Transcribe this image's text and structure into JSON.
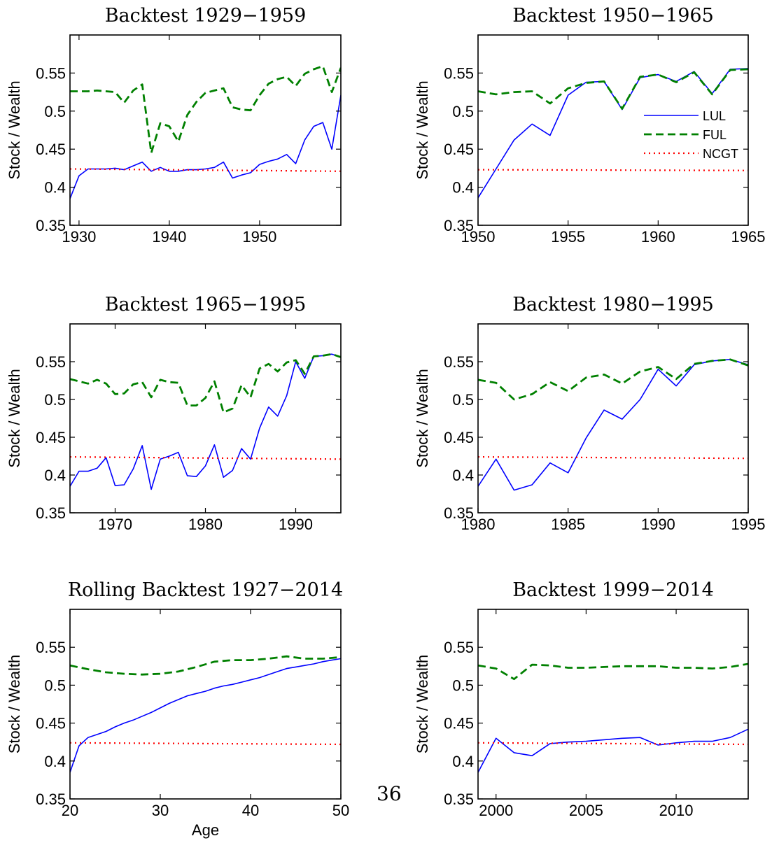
{
  "page_number": "36",
  "colors": {
    "LUL": "#0000ff",
    "FUL": "#008000",
    "NCGT": "#ff0000"
  },
  "chart_data": [
    {
      "type": "line",
      "title": "Backtest 1929−1959",
      "xlabel": "",
      "ylabel": "Stock / Wealth",
      "xlim": [
        1929,
        1959
      ],
      "ylim": [
        0.35,
        0.6
      ],
      "xticks": [
        1930,
        1940,
        1950
      ],
      "yticks": [
        0.35,
        0.4,
        0.45,
        0.5,
        0.55
      ],
      "legend": null,
      "series": [
        {
          "name": "LUL",
          "style": "solid",
          "x": [
            1929,
            1930,
            1931,
            1932,
            1933,
            1934,
            1935,
            1936,
            1937,
            1938,
            1939,
            1940,
            1941,
            1942,
            1943,
            1944,
            1945,
            1946,
            1947,
            1948,
            1949,
            1950,
            1951,
            1952,
            1953,
            1954,
            1955,
            1956,
            1957,
            1958,
            1959
          ],
          "y": [
            0.385,
            0.415,
            0.424,
            0.424,
            0.424,
            0.425,
            0.423,
            0.428,
            0.433,
            0.421,
            0.426,
            0.421,
            0.421,
            0.423,
            0.423,
            0.424,
            0.426,
            0.433,
            0.412,
            0.416,
            0.419,
            0.43,
            0.434,
            0.437,
            0.443,
            0.431,
            0.462,
            0.48,
            0.485,
            0.45,
            0.521
          ]
        },
        {
          "name": "FUL",
          "style": "dashed",
          "x": [
            1929,
            1930,
            1931,
            1932,
            1933,
            1934,
            1935,
            1936,
            1937,
            1938,
            1939,
            1940,
            1941,
            1942,
            1943,
            1944,
            1945,
            1946,
            1947,
            1948,
            1949,
            1950,
            1951,
            1952,
            1953,
            1954,
            1955,
            1956,
            1957,
            1958,
            1959
          ],
          "y": [
            0.526,
            0.526,
            0.526,
            0.527,
            0.526,
            0.525,
            0.511,
            0.527,
            0.535,
            0.445,
            0.484,
            0.48,
            0.46,
            0.495,
            0.512,
            0.524,
            0.527,
            0.53,
            0.505,
            0.502,
            0.501,
            0.521,
            0.536,
            0.542,
            0.545,
            0.533,
            0.549,
            0.555,
            0.559,
            0.525,
            0.557
          ]
        },
        {
          "name": "NCGT",
          "style": "dotted",
          "x": [
            1929,
            1959
          ],
          "y": [
            0.424,
            0.421
          ]
        }
      ]
    },
    {
      "type": "line",
      "title": "Backtest 1950−1965",
      "xlabel": "",
      "ylabel": "Stock / Wealth",
      "xlim": [
        1950,
        1965
      ],
      "ylim": [
        0.35,
        0.6
      ],
      "xticks": [
        1950,
        1955,
        1960,
        1965
      ],
      "yticks": [
        0.35,
        0.4,
        0.45,
        0.5,
        0.55
      ],
      "legend": {
        "position": "right",
        "entries": [
          "LUL",
          "FUL",
          "NCGT"
        ]
      },
      "series": [
        {
          "name": "LUL",
          "style": "solid",
          "x": [
            1950,
            1951,
            1952,
            1953,
            1954,
            1955,
            1956,
            1957,
            1958,
            1959,
            1960,
            1961,
            1962,
            1963,
            1964,
            1965
          ],
          "y": [
            0.386,
            0.424,
            0.462,
            0.483,
            0.468,
            0.521,
            0.538,
            0.539,
            0.502,
            0.544,
            0.548,
            0.539,
            0.552,
            0.523,
            0.555,
            0.556
          ]
        },
        {
          "name": "FUL",
          "style": "dashed",
          "x": [
            1950,
            1951,
            1952,
            1953,
            1954,
            1955,
            1956,
            1957,
            1958,
            1959,
            1960,
            1961,
            1962,
            1963,
            1964,
            1965
          ],
          "y": [
            0.526,
            0.522,
            0.525,
            0.526,
            0.51,
            0.53,
            0.537,
            0.539,
            0.503,
            0.545,
            0.548,
            0.538,
            0.551,
            0.522,
            0.554,
            0.555
          ]
        },
        {
          "name": "NCGT",
          "style": "dotted",
          "x": [
            1950,
            1965
          ],
          "y": [
            0.423,
            0.422
          ]
        }
      ]
    },
    {
      "type": "line",
      "title": "Backtest 1965−1995",
      "xlabel": "",
      "ylabel": "Stock / Wealth",
      "xlim": [
        1965,
        1995
      ],
      "ylim": [
        0.35,
        0.6
      ],
      "xticks": [
        1970,
        1980,
        1990
      ],
      "yticks": [
        0.35,
        0.4,
        0.45,
        0.5,
        0.55
      ],
      "legend": null,
      "series": [
        {
          "name": "LUL",
          "style": "solid",
          "x": [
            1965,
            1966,
            1967,
            1968,
            1969,
            1970,
            1971,
            1972,
            1973,
            1974,
            1975,
            1976,
            1977,
            1978,
            1979,
            1980,
            1981,
            1982,
            1983,
            1984,
            1985,
            1986,
            1987,
            1988,
            1989,
            1990,
            1991,
            1992,
            1993,
            1994,
            1995
          ],
          "y": [
            0.385,
            0.405,
            0.405,
            0.409,
            0.423,
            0.386,
            0.387,
            0.408,
            0.439,
            0.381,
            0.421,
            0.425,
            0.43,
            0.399,
            0.398,
            0.412,
            0.44,
            0.397,
            0.406,
            0.435,
            0.421,
            0.462,
            0.49,
            0.478,
            0.505,
            0.55,
            0.528,
            0.557,
            0.558,
            0.56,
            0.556
          ]
        },
        {
          "name": "FUL",
          "style": "dashed",
          "x": [
            1965,
            1966,
            1967,
            1968,
            1969,
            1970,
            1971,
            1972,
            1973,
            1974,
            1975,
            1976,
            1977,
            1978,
            1979,
            1980,
            1981,
            1982,
            1983,
            1984,
            1985,
            1986,
            1987,
            1988,
            1989,
            1990,
            1991,
            1992,
            1993,
            1994,
            1995
          ],
          "y": [
            0.527,
            0.524,
            0.521,
            0.526,
            0.521,
            0.507,
            0.508,
            0.52,
            0.523,
            0.503,
            0.526,
            0.523,
            0.522,
            0.492,
            0.492,
            0.502,
            0.524,
            0.483,
            0.488,
            0.519,
            0.503,
            0.541,
            0.547,
            0.537,
            0.549,
            0.552,
            0.534,
            0.557,
            0.558,
            0.56,
            0.556
          ]
        },
        {
          "name": "NCGT",
          "style": "dotted",
          "x": [
            1965,
            1995
          ],
          "y": [
            0.424,
            0.421
          ]
        }
      ]
    },
    {
      "type": "line",
      "title": "Backtest 1980−1995",
      "xlabel": "",
      "ylabel": "Stock / Wealth",
      "xlim": [
        1980,
        1995
      ],
      "ylim": [
        0.35,
        0.6
      ],
      "xticks": [
        1980,
        1985,
        1990,
        1995
      ],
      "yticks": [
        0.35,
        0.4,
        0.45,
        0.5,
        0.55
      ],
      "legend": null,
      "series": [
        {
          "name": "LUL",
          "style": "solid",
          "x": [
            1980,
            1981,
            1982,
            1983,
            1984,
            1985,
            1986,
            1987,
            1988,
            1989,
            1990,
            1991,
            1992,
            1993,
            1994,
            1995
          ],
          "y": [
            0.385,
            0.421,
            0.38,
            0.387,
            0.416,
            0.403,
            0.449,
            0.486,
            0.474,
            0.5,
            0.54,
            0.518,
            0.546,
            0.551,
            0.553,
            0.546
          ]
        },
        {
          "name": "FUL",
          "style": "dashed",
          "x": [
            1980,
            1981,
            1982,
            1983,
            1984,
            1985,
            1986,
            1987,
            1988,
            1989,
            1990,
            1991,
            1992,
            1993,
            1994,
            1995
          ],
          "y": [
            0.526,
            0.522,
            0.5,
            0.507,
            0.523,
            0.511,
            0.529,
            0.533,
            0.521,
            0.537,
            0.543,
            0.527,
            0.547,
            0.551,
            0.553,
            0.545
          ]
        },
        {
          "name": "NCGT",
          "style": "dotted",
          "x": [
            1980,
            1995
          ],
          "y": [
            0.424,
            0.422
          ]
        }
      ]
    },
    {
      "type": "line",
      "title": "Rolling Backtest 1927−2014",
      "xlabel": "Age",
      "ylabel": "Stock / Wealth",
      "xlim": [
        20,
        50
      ],
      "ylim": [
        0.35,
        0.6
      ],
      "xticks": [
        20,
        30,
        40,
        50
      ],
      "yticks": [
        0.35,
        0.4,
        0.45,
        0.5,
        0.55
      ],
      "legend": null,
      "series": [
        {
          "name": "LUL",
          "style": "solid",
          "x": [
            20,
            21,
            22,
            23,
            24,
            25,
            26,
            27,
            28,
            29,
            30,
            31,
            32,
            33,
            34,
            35,
            36,
            37,
            38,
            39,
            40,
            41,
            42,
            43,
            44,
            45,
            46,
            47,
            48,
            49,
            50
          ],
          "y": [
            0.385,
            0.42,
            0.431,
            0.435,
            0.439,
            0.445,
            0.45,
            0.454,
            0.459,
            0.464,
            0.47,
            0.476,
            0.481,
            0.486,
            0.489,
            0.492,
            0.496,
            0.499,
            0.501,
            0.504,
            0.507,
            0.51,
            0.514,
            0.518,
            0.522,
            0.524,
            0.526,
            0.528,
            0.531,
            0.533,
            0.535
          ]
        },
        {
          "name": "FUL",
          "style": "dashed",
          "x": [
            20,
            22,
            24,
            26,
            28,
            30,
            32,
            34,
            36,
            38,
            40,
            42,
            44,
            46,
            48,
            50
          ],
          "y": [
            0.526,
            0.521,
            0.517,
            0.515,
            0.514,
            0.515,
            0.518,
            0.524,
            0.531,
            0.533,
            0.533,
            0.535,
            0.538,
            0.535,
            0.535,
            0.537
          ]
        },
        {
          "name": "NCGT",
          "style": "dotted",
          "x": [
            20,
            50
          ],
          "y": [
            0.424,
            0.422
          ]
        }
      ]
    },
    {
      "type": "line",
      "title": "Backtest 1999−2014",
      "xlabel": "",
      "ylabel": "Stock / Wealth",
      "xlim": [
        1999,
        2014
      ],
      "ylim": [
        0.35,
        0.6
      ],
      "xticks": [
        2000,
        2005,
        2010
      ],
      "yticks": [
        0.35,
        0.4,
        0.45,
        0.5,
        0.55
      ],
      "legend": null,
      "series": [
        {
          "name": "LUL",
          "style": "solid",
          "x": [
            1999,
            2000,
            2001,
            2002,
            2003,
            2004,
            2005,
            2006,
            2007,
            2008,
            2009,
            2010,
            2011,
            2012,
            2013,
            2014
          ],
          "y": [
            0.385,
            0.43,
            0.411,
            0.407,
            0.423,
            0.425,
            0.426,
            0.428,
            0.43,
            0.431,
            0.421,
            0.424,
            0.426,
            0.426,
            0.431,
            0.442
          ]
        },
        {
          "name": "FUL",
          "style": "dashed",
          "x": [
            1999,
            2000,
            2001,
            2002,
            2003,
            2004,
            2005,
            2006,
            2007,
            2008,
            2009,
            2010,
            2011,
            2012,
            2013,
            2014
          ],
          "y": [
            0.526,
            0.522,
            0.508,
            0.527,
            0.526,
            0.523,
            0.523,
            0.524,
            0.525,
            0.525,
            0.525,
            0.523,
            0.523,
            0.522,
            0.524,
            0.528
          ]
        },
        {
          "name": "NCGT",
          "style": "dotted",
          "x": [
            1999,
            2014
          ],
          "y": [
            0.424,
            0.422
          ]
        }
      ]
    }
  ]
}
